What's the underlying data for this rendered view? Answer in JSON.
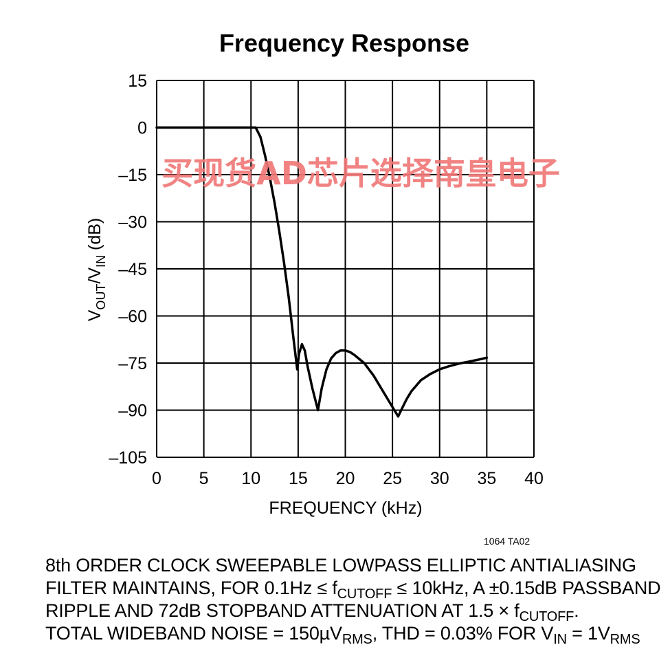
{
  "chart_data": {
    "type": "line",
    "title": "Frequency Response",
    "xlabel": "FREQUENCY (kHz)",
    "ylabel": {
      "main": "V",
      "sub1": "OUT",
      "mid": "/V",
      "sub2": "IN",
      "tail": " (dB)"
    },
    "xlim": [
      0,
      40
    ],
    "ylim": [
      -105,
      15
    ],
    "x_ticks": [
      0,
      5,
      10,
      15,
      20,
      25,
      30,
      35,
      40
    ],
    "y_ticks": [
      15,
      0,
      -15,
      -30,
      -45,
      -60,
      -75,
      -90,
      -105
    ],
    "y_tick_labels": [
      "15",
      "0",
      "–15",
      "–30",
      "–45",
      "–60",
      "–75",
      "–90",
      "–105"
    ],
    "grid": true,
    "series": [
      {
        "x": [
          0,
          5,
          10,
          10.5,
          11,
          11.5,
          12,
          12.5,
          13,
          13.5,
          14,
          14.5,
          14.9,
          15.1,
          15.4,
          15.7,
          16,
          16.5,
          17.1,
          17.5,
          18,
          18.5,
          19,
          19.5,
          20,
          20.5,
          21,
          22,
          23,
          24,
          25,
          25.6,
          26,
          26.5,
          27,
          28,
          29,
          30,
          31,
          32,
          33,
          34,
          35
        ],
        "y": [
          0,
          0,
          0,
          0,
          -3,
          -9,
          -16,
          -24,
          -33,
          -43,
          -54,
          -67,
          -77,
          -72,
          -69,
          -71,
          -76,
          -83,
          -90,
          -83,
          -77,
          -73.5,
          -71.8,
          -71,
          -71,
          -71.5,
          -72.5,
          -75,
          -79,
          -84,
          -89,
          -92,
          -89.5,
          -86.5,
          -84,
          -80.5,
          -78.5,
          -77,
          -76,
          -75.2,
          -74.6,
          -74,
          -73.3
        ]
      }
    ]
  },
  "watermark": "买现货AD芯片选择南皇电子",
  "figure_id": "1064 TA02",
  "caption": {
    "l1": "8th ORDER CLOCK SWEEPABLE LOWPASS ELLIPTIC ANTIALIASING",
    "l2a": "FILTER MAINTAINS, FOR 0.1Hz ≤ f",
    "l2sub": "CUTOFF",
    "l2b": " ≤ 10kHz, A ±0.15dB PASSBAND",
    "l3a": "RIPPLE AND 72dB STOPBAND ATTENUATION AT 1.5 × f",
    "l3sub": "CUTOFF",
    "l3b": ".",
    "l4a": "TOTAL WIDEBAND NOISE = 150µV",
    "l4sub1": "RMS",
    "l4b": ", THD = 0.03% FOR V",
    "l4sub2": "IN",
    "l4c": " = 1V",
    "l4sub3": "RMS"
  }
}
